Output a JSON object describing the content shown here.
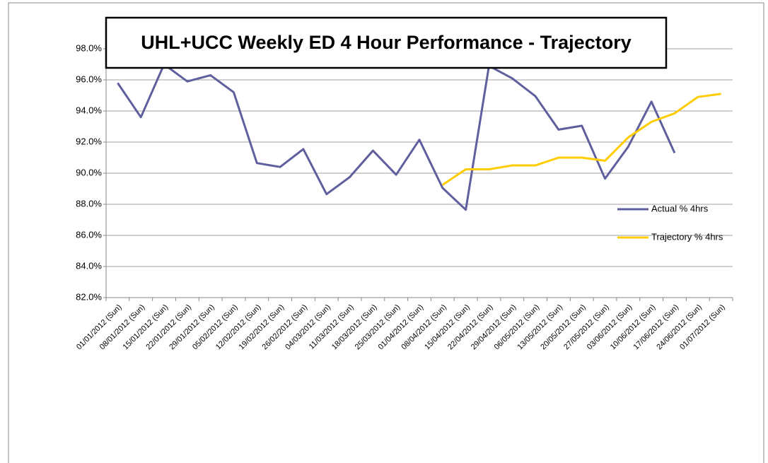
{
  "chart_data": {
    "type": "line",
    "title": "UHL+UCC Weekly ED 4 Hour Performance - Trajectory",
    "categories": [
      "01/01/2012 (Sun)",
      "08/01/2012 (Sun)",
      "15/01/2012 (Sun)",
      "22/01/2012 (Sun)",
      "29/01/2012 (Sun)",
      "05/02/2012 (Sun)",
      "12/02/2012 (Sun)",
      "19/02/2012 (Sun)",
      "26/02/2012 (Sun)",
      "04/03/2012 (Sun)",
      "11/03/2012 (Sun)",
      "18/03/2012 (Sun)",
      "25/03/2012 (Sun)",
      "01/04/2012 (Sun)",
      "08/04/2012 (Sun)",
      "15/04/2012 (Sun)",
      "22/04/2012 (Sun)",
      "29/04/2012 (Sun)",
      "06/05/2012 (Sun)",
      "13/05/2012 (Sun)",
      "20/05/2012 (Sun)",
      "27/05/2012 (Sun)",
      "03/06/2012 (Sun)",
      "10/06/2012 (Sun)",
      "17/06/2012 (Sun)",
      "24/06/2012 (Sun)",
      "01/07/2012 (Sun)"
    ],
    "series": [
      {
        "name": "Actual % 4hrs",
        "color": "#5f5f9e",
        "values": [
          95.8,
          93.6,
          97.0,
          95.9,
          96.3,
          95.2,
          90.65,
          90.4,
          91.55,
          88.65,
          89.75,
          91.45,
          89.9,
          92.15,
          89.05,
          87.65,
          96.9,
          96.1,
          94.95,
          92.8,
          93.05,
          89.65,
          91.7,
          94.6,
          91.3,
          null,
          null
        ]
      },
      {
        "name": "Trajectory % 4hrs",
        "color": "#ffcc00",
        "values": [
          null,
          null,
          null,
          null,
          null,
          null,
          null,
          null,
          null,
          null,
          null,
          null,
          null,
          null,
          89.25,
          90.25,
          90.25,
          90.5,
          90.5,
          91.0,
          91.0,
          90.8,
          92.3,
          93.3,
          93.85,
          94.9,
          95.1
        ]
      }
    ],
    "ylim": [
      82,
      100
    ],
    "yticks": [
      {
        "value": 82,
        "label": "82.0%"
      },
      {
        "value": 84,
        "label": "84.0%"
      },
      {
        "value": 86,
        "label": "86.0%"
      },
      {
        "value": 88,
        "label": "88.0%"
      },
      {
        "value": 90,
        "label": "90.0%"
      },
      {
        "value": 92,
        "label": "92.0%"
      },
      {
        "value": 94,
        "label": "94.0%"
      },
      {
        "value": 96,
        "label": "96.0%"
      },
      {
        "value": 98,
        "label": "98.0%"
      }
    ],
    "grid": true,
    "legend": "right"
  }
}
